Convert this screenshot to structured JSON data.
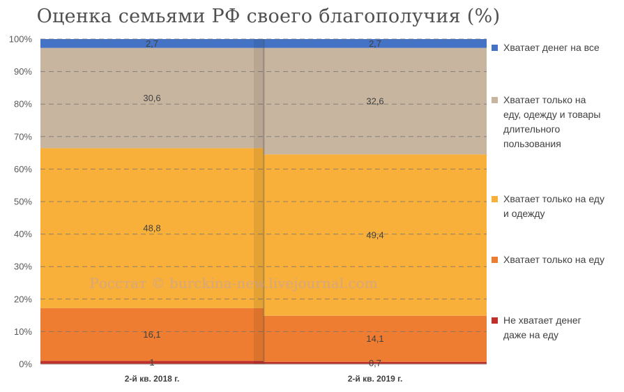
{
  "title": "Оценка семьями РФ своего благополучия (%)",
  "watermark": "Росстат © burckina-new.livejournal.com",
  "chart_data": {
    "type": "bar",
    "stacked": true,
    "normalized_percent": true,
    "title": "Оценка семьями РФ своего благополучия (%)",
    "categories": [
      "2-й кв. 2018 г.",
      "2-й кв. 2019 г."
    ],
    "series": [
      {
        "name": "Не хватает денег даже на еду",
        "color": "#c0302b",
        "values": [
          1,
          0.7
        ],
        "labels": [
          "1",
          "0,7"
        ]
      },
      {
        "name": "Хватает только на еду",
        "color": "#ee7d31",
        "values": [
          16.1,
          14.1
        ],
        "labels": [
          "16,1",
          "14,1"
        ]
      },
      {
        "name": "Хватает только на еду и одежду",
        "color": "#f8b03a",
        "values": [
          48.8,
          49.4
        ],
        "labels": [
          "48,8",
          "49,4"
        ]
      },
      {
        "name": "Хватает только на еду, одежду и товары длительного пользования",
        "color": "#c8b59f",
        "values": [
          30.6,
          32.6
        ],
        "labels": [
          "30,6",
          "32,6"
        ]
      },
      {
        "name": "Хватает денег на все",
        "color": "#4472c4",
        "values": [
          2.7,
          2.7
        ],
        "labels": [
          "2,7",
          "2,7"
        ]
      }
    ],
    "y_ticks": [
      "0%",
      "10%",
      "20%",
      "30%",
      "40%",
      "50%",
      "60%",
      "70%",
      "80%",
      "90%",
      "100%"
    ],
    "ylim": [
      0,
      100
    ],
    "grid": "dashed horizontal",
    "legend_position": "right"
  },
  "legend": {
    "items": [
      {
        "color": "#4472c4",
        "lines": [
          "Хватает денег на все"
        ]
      },
      {
        "color": "#c8b59f",
        "lines": [
          "Хватает только на",
          "еду, одежду и товары",
          "длительного",
          "пользования"
        ]
      },
      {
        "color": "#f8b03a",
        "lines": [
          "Хватает только на еду",
          "и одежду"
        ]
      },
      {
        "color": "#ee7d31",
        "lines": [
          "Хватает только на еду"
        ]
      },
      {
        "color": "#c0302b",
        "lines": [
          "Не хватает денег",
          "даже на еду"
        ]
      }
    ]
  }
}
